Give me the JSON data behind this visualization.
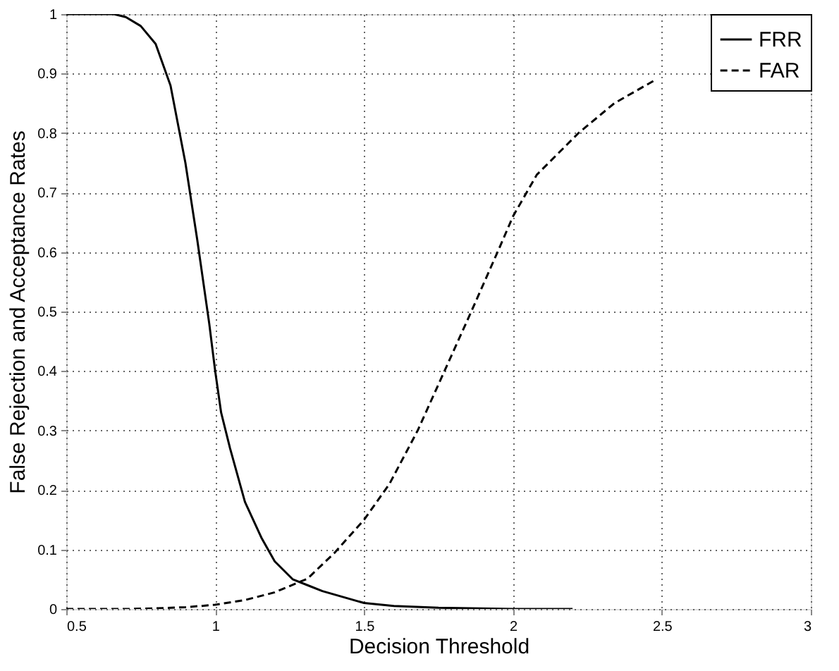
{
  "chart_data": {
    "type": "line",
    "xlabel": "Decision Threshold",
    "ylabel": "False Rejection and Acceptance Rates",
    "xlim": [
      0.5,
      3
    ],
    "ylim": [
      0,
      1
    ],
    "xticks": [
      0.5,
      1,
      1.5,
      2,
      2.5,
      3
    ],
    "yticks": [
      0,
      0.1,
      0.2,
      0.3,
      0.4,
      0.5,
      0.6,
      0.7,
      0.8,
      0.9,
      1
    ],
    "grid": true,
    "legend": "top right",
    "marker": "none",
    "series": [
      {
        "name": "FRR",
        "color": "#000000",
        "line_style": "solid",
        "x": [
          0.5,
          0.6,
          0.66,
          0.7,
          0.75,
          0.8,
          0.85,
          0.9,
          0.94,
          0.98,
          1.0,
          1.02,
          1.05,
          1.1,
          1.155,
          1.2,
          1.26,
          1.31,
          1.36,
          1.5,
          1.6,
          1.75,
          2.0,
          2.2
        ],
        "values": [
          1,
          1,
          1,
          0.995,
          0.98,
          0.95,
          0.88,
          0.75,
          0.62,
          0.48,
          0.4,
          0.33,
          0.27,
          0.18,
          0.12,
          0.08,
          0.05,
          0.04,
          0.03,
          0.01,
          0.005,
          0.002,
          0,
          0
        ]
      },
      {
        "name": "FAR",
        "color": "#000000",
        "line_style": "dashed",
        "x": [
          0.5,
          0.7,
          0.8,
          0.9,
          1.0,
          1.1,
          1.2,
          1.31,
          1.4,
          1.5,
          1.585,
          1.68,
          1.77,
          1.86,
          1.957,
          2.0,
          2.08,
          2.22,
          2.34,
          2.48
        ],
        "values": [
          0,
          0,
          0.001,
          0.003,
          0.007,
          0.015,
          0.028,
          0.051,
          0.094,
          0.15,
          0.21,
          0.3,
          0.4,
          0.5,
          0.61,
          0.66,
          0.73,
          0.8,
          0.85,
          0.89
        ]
      }
    ]
  }
}
